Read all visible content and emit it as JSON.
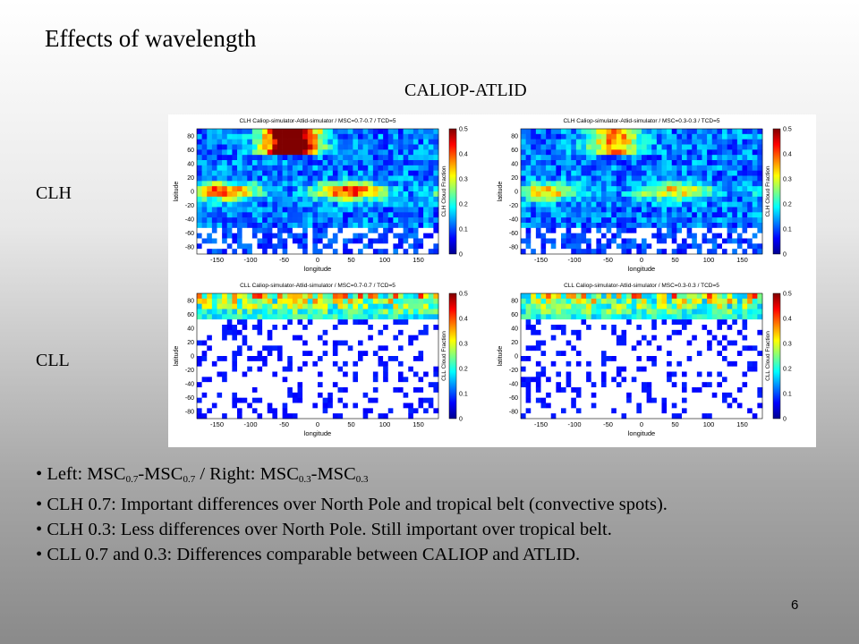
{
  "slide": {
    "title": "Effects of wavelength",
    "subtitle": "CALIOP-ATLID",
    "row_labels": [
      "CLH",
      "CLL"
    ],
    "page_number": "6"
  },
  "maps": [
    {
      "title": "CLH Caliop-simulator-Atlid-simulator / MSC=0.7-0.7 / TCD=5",
      "colorbar_label": "CLH Cloud Fraction"
    },
    {
      "title": "CLH Caliop-simulator-Atlid-simulator / MSC=0.3-0.3 / TCD=5",
      "colorbar_label": "CLH Cloud Fraction"
    },
    {
      "title": "CLL Caliop-simulator-Atlid-simulator / MSC=0.7-0.7 / TCD=5",
      "colorbar_label": "CLL Cloud Fraction"
    },
    {
      "title": "CLL Caliop-simulator-Atlid-simulator / MSC=0.3-0.3 / TCD=5",
      "colorbar_label": "CLL Cloud Fraction"
    }
  ],
  "map_axes": {
    "xlabel": "longitude",
    "ylabel": "latitude",
    "xticks": [
      -150,
      -100,
      -50,
      0,
      50,
      100,
      150
    ],
    "yticks": [
      80,
      60,
      40,
      20,
      0,
      -20,
      -40,
      -60,
      -80
    ],
    "colorbar_ticks": [
      0.5,
      0.4,
      0.3,
      0.2,
      0.1,
      0
    ]
  },
  "bullets": [
    [
      "Left: MSC",
      "0.7",
      "-MSC",
      "0.7",
      " /  Right: MSC",
      "0.3",
      "-MSC",
      "0.3"
    ],
    "CLH 0.7: Important differences over North Pole and tropical belt (convective spots).",
    "CLH 0.3: Less differences over North Pole. Still important over tropical belt.",
    "CLL 0.7 and 0.3: Differences comparable between CALIOP and ATLID."
  ]
}
